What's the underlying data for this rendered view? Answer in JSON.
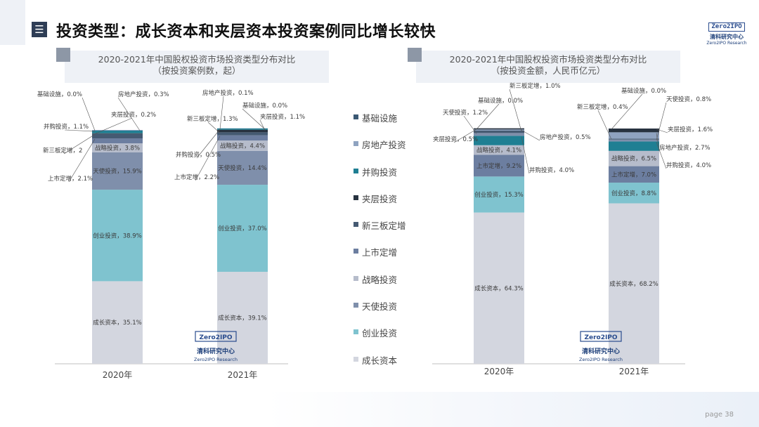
{
  "header": {
    "icon": "menu-lines-icon",
    "title": "投资类型：成长资本和夹层资本投资案例同比增长较快",
    "brand_mark": "Zero2IPO",
    "brand_cn": "清科研究中心",
    "brand_en": "Zero2IPO Research"
  },
  "colors": {
    "成长资本": "#d3d6df",
    "创业投资": "#7fc3cf",
    "天使投资": "#7f8fab",
    "战略投资": "#b6bccb",
    "上市定增": "#6c7ea0",
    "新三板定增": "#455a72",
    "夹层投资": "#27323f",
    "并购投资": "#1f7f93",
    "房地产投资": "#8fa3c0",
    "基础设施": "#3a5873"
  },
  "legend": {
    "items": [
      "基础设施",
      "房地产投资",
      "并购投资",
      "夹层投资",
      "新三板定增",
      "上市定增",
      "战略投资",
      "天使投资",
      "创业投资",
      "成长资本"
    ]
  },
  "watermark": {
    "mark": "Zero2IPO",
    "cn": "清科研究中心",
    "en": "Zero2IPO Research"
  },
  "chart_data": [
    {
      "type": "bar",
      "stacked": true,
      "percent": true,
      "title": "2020-2021年中国股权投资市场投资类型分布对比",
      "subtitle": "（按投资案例数，起）",
      "categories": [
        "2020年",
        "2021年"
      ],
      "ylim": [
        0,
        100
      ],
      "series": [
        {
          "name": "成长资本",
          "values": [
            35.1,
            39.1
          ]
        },
        {
          "name": "创业投资",
          "values": [
            38.9,
            37.0
          ]
        },
        {
          "name": "天使投资",
          "values": [
            15.9,
            14.4
          ]
        },
        {
          "name": "战略投资",
          "values": [
            3.8,
            4.4
          ]
        },
        {
          "name": "上市定增",
          "values": [
            2.1,
            2.2
          ]
        },
        {
          "name": "新三板定增",
          "values": [
            2.0,
            1.3
          ]
        },
        {
          "name": "夹层投资",
          "values": [
            0.2,
            1.1
          ]
        },
        {
          "name": "并购投资",
          "values": [
            1.1,
            0.5
          ]
        },
        {
          "name": "房地产投资",
          "values": [
            0.3,
            0.1
          ]
        },
        {
          "name": "基础设施",
          "values": [
            0.0,
            0.0
          ]
        }
      ],
      "data_labels": {
        "2020年": [
          "成长资本，35.1%",
          "创业投资，38.9%",
          "天使投资，15.9%",
          "战略投资，3.8%",
          "上市定增，2.1%",
          "新三板定增，2",
          "夹层投资，0.2%",
          "并购投资，1.1%",
          "房地产投资，0.3%",
          "基础设施，0.0%"
        ],
        "2021年": [
          "成长资本，39.1%",
          "创业投资，37.0%",
          "天使投资，14.4%",
          "战略投资，4.4%",
          "上市定增，2.2%",
          "新三板定增，1.3%",
          "夹层投资，1.1%",
          "并购投资，0.5%",
          "房地产投资，0.1%",
          "基础设施，0.0%"
        ]
      }
    },
    {
      "type": "bar",
      "stacked": true,
      "percent": true,
      "title": "2020-2021年中国股权投资市场投资类型分布对比",
      "subtitle": "（按投资金额，人民币亿元）",
      "categories": [
        "2020年",
        "2021年"
      ],
      "ylim": [
        0,
        100
      ],
      "series": [
        {
          "name": "成长资本",
          "values": [
            64.3,
            68.2
          ]
        },
        {
          "name": "创业投资",
          "values": [
            15.3,
            8.8
          ]
        },
        {
          "name": "上市定增",
          "values": [
            9.2,
            7.0
          ]
        },
        {
          "name": "战略投资",
          "values": [
            4.1,
            6.5
          ]
        },
        {
          "name": "并购投资",
          "values": [
            4.0,
            4.0
          ]
        },
        {
          "name": "天使投资",
          "values": [
            1.2,
            0.8
          ]
        },
        {
          "name": "新三板定增",
          "values": [
            1.0,
            0.4
          ]
        },
        {
          "name": "房地产投资",
          "values": [
            0.5,
            2.7
          ]
        },
        {
          "name": "夹层投资",
          "values": [
            0.5,
            1.6
          ]
        },
        {
          "name": "基础设施",
          "values": [
            0.0,
            0.0
          ]
        }
      ],
      "data_labels": {
        "2020年": [
          "成长资本，64.3%",
          "创业投资，15.3%",
          "上市定增，9.2%",
          "战略投资，4.1%",
          "并购投资，4.0%",
          "天使投资，1.2%",
          "新三板定增，1.0%",
          "房地产投资，0.5%",
          "夹层投资，0.5%",
          "基础设施，0.0%"
        ],
        "2021年": [
          "成长资本，68.2%",
          "创业投资，8.8%",
          "上市定增，7.0%",
          "战略投资，6.5%",
          "并购投资，4.0%",
          "天使投资，0.8%",
          "新三板定增，0.4%",
          "房地产投资，2.7%",
          "夹层投资，1.6%",
          "基础设施，0.0%"
        ]
      }
    }
  ],
  "footer": {
    "page_label": "page  38"
  }
}
